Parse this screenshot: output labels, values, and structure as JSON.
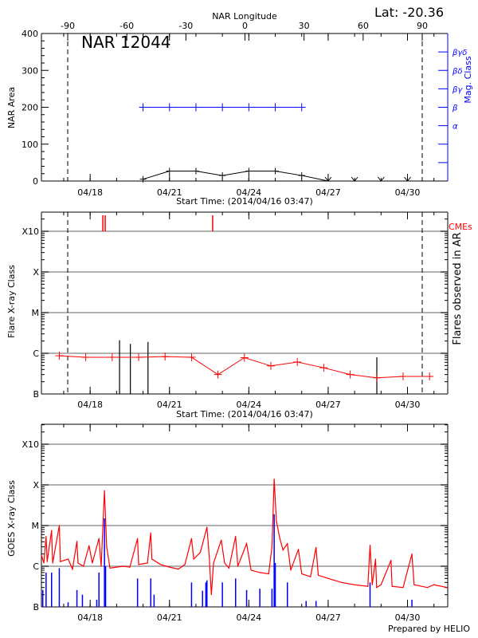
{
  "footer": {
    "prepared_by": "Prepared by HELIO"
  },
  "colors": {
    "axis": "#000000",
    "grid": "#999999",
    "flare_red": "#ff0000",
    "mag_blue": "#0000ff",
    "goes_long": "#ff0000",
    "goes_short": "#0000ff"
  },
  "chart_data": [
    {
      "type": "line",
      "title": "NAR 12044",
      "annotation": "Lat: -20.36",
      "xlabel": "Start Time: (2014/04/16 03:47)",
      "xlim": [
        "2014-04-16T03:47",
        "2014-05-01T12:30"
      ],
      "xticks": [
        {
          "date": "2014-04-18T00:00",
          "label": "04/18"
        },
        {
          "date": "2014-04-21T00:00",
          "label": "04/21"
        },
        {
          "date": "2014-04-24T00:00",
          "label": "04/24"
        },
        {
          "date": "2014-04-27T00:00",
          "label": "04/27"
        },
        {
          "date": "2014-04-30T00:00",
          "label": "04/30"
        }
      ],
      "x2label": "NAR Longitude",
      "x2ticks": [
        -90,
        -60,
        -30,
        0,
        30,
        60,
        90
      ],
      "limb_longitudes": [
        -90,
        90
      ],
      "ylabel": "NAR Area",
      "ylim": [
        0,
        400
      ],
      "yticks": [
        0,
        100,
        200,
        300,
        400
      ],
      "y2label": "Mag. Class",
      "y2ticks": [
        {
          "area": 50,
          "label": ""
        },
        {
          "area": 100,
          "label": ""
        },
        {
          "area": 150,
          "label": "α"
        },
        {
          "area": 200,
          "label": "β"
        },
        {
          "area": 250,
          "label": "βγ"
        },
        {
          "area": 300,
          "label": "βδ"
        },
        {
          "area": 350,
          "label": "βγδ"
        }
      ],
      "area_series": {
        "dates": [
          "2014-04-20T00:00",
          "2014-04-21T00:00",
          "2014-04-22T00:00",
          "2014-04-23T00:00",
          "2014-04-24T00:00",
          "2014-04-25T00:00",
          "2014-04-26T00:00",
          "2014-04-27T00:00",
          "2014-04-28T00:00",
          "2014-04-29T00:00",
          "2014-04-30T00:00"
        ],
        "values": [
          5,
          27,
          27,
          15,
          27,
          27,
          15,
          0,
          0,
          0,
          0
        ]
      },
      "mag_class_series": {
        "dates": [
          "2014-04-20T00:00",
          "2014-04-21T00:00",
          "2014-04-22T00:00",
          "2014-04-23T00:00",
          "2014-04-24T00:00",
          "2014-04-25T00:00",
          "2014-04-26T00:00"
        ],
        "values": [
          "β",
          "β",
          "β",
          "β",
          "β",
          "β",
          "β"
        ]
      }
    },
    {
      "type": "line",
      "xlabel": "Start Time: (2014/04/16 03:47)",
      "ylabel": "Flare X-ray Class",
      "y2label": "Flares observed in AR",
      "cme_label": "CMEs",
      "y_scale": "log",
      "yticks": [
        "B",
        "C",
        "M",
        "X",
        "X10"
      ],
      "grid": true,
      "limb_longitudes": [
        -90,
        90
      ],
      "cme_times": [
        "2014-04-18T11:30",
        "2014-04-18T13:40",
        "2014-04-22T15:10"
      ],
      "flares": [
        {
          "date": "2014-04-19T02:40",
          "class": "C2.1"
        },
        {
          "date": "2014-04-19T12:30",
          "class": "C1.7"
        },
        {
          "date": "2014-04-20T04:30",
          "class": "C1.9"
        },
        {
          "date": "2014-04-28T20:10",
          "class": "B8.0"
        }
      ],
      "series": {
        "dates": [
          "2014-04-16T20:00",
          "2014-04-17T20:00",
          "2014-04-18T20:00",
          "2014-04-19T20:00",
          "2014-04-20T20:00",
          "2014-04-21T20:00",
          "2014-04-22T20:00",
          "2014-04-23T20:00",
          "2014-04-24T20:00",
          "2014-04-25T20:00",
          "2014-04-26T20:00",
          "2014-04-27T20:00",
          "2014-04-28T20:00",
          "2014-04-29T20:00",
          "2014-04-30T20:00"
        ],
        "values": [
          "B8.7",
          "B8.0",
          "B8.0",
          "B8.0",
          "B8.3",
          "B8.0",
          "B3.0",
          "B7.8",
          "B4.9",
          "B6.1",
          "B4.4",
          "B3.0",
          "B2.5",
          "B2.7",
          "B2.7"
        ]
      }
    },
    {
      "type": "line",
      "ylabel": "GOES X-ray Class",
      "y_scale": "log",
      "yticks": [
        "B",
        "C",
        "M",
        "X",
        "X10"
      ],
      "grid": true,
      "long_channel": [
        [
          "2014-04-16T04:00",
          "C1.8"
        ],
        [
          "2014-04-16T06:00",
          "C1.2"
        ],
        [
          "2014-04-16T08:00",
          "C5.4"
        ],
        [
          "2014-04-16T09:00",
          "C1.3"
        ],
        [
          "2014-04-16T13:00",
          "C7.6"
        ],
        [
          "2014-04-16T14:00",
          "C1.2"
        ],
        [
          "2014-04-16T20:00",
          "M1.0"
        ],
        [
          "2014-04-16T21:00",
          "C1.3"
        ],
        [
          "2014-04-17T04:00",
          "C1.5"
        ],
        [
          "2014-04-17T08:00",
          "B8.5"
        ],
        [
          "2014-04-17T12:00",
          "C4.1"
        ],
        [
          "2014-04-17T13:00",
          "C1.2"
        ],
        [
          "2014-04-17T18:00",
          "C1.0"
        ],
        [
          "2014-04-17T23:00",
          "C3.2"
        ],
        [
          "2014-04-18T02:00",
          "C1.2"
        ],
        [
          "2014-04-18T08:00",
          "C4.8"
        ],
        [
          "2014-04-18T10:00",
          "C1.0"
        ],
        [
          "2014-04-18T13:00",
          "M7.2"
        ],
        [
          "2014-04-18T15:00",
          "C3.0"
        ],
        [
          "2014-04-18T18:00",
          "B9.0"
        ],
        [
          "2014-04-19T06:00",
          "C1.0"
        ],
        [
          "2014-04-19T12:00",
          "B9.5"
        ],
        [
          "2014-04-19T19:00",
          "C4.8"
        ],
        [
          "2014-04-19T20:00",
          "C1.1"
        ],
        [
          "2014-04-20T04:00",
          "C1.2"
        ],
        [
          "2014-04-20T07:00",
          "C6.6"
        ],
        [
          "2014-04-20T08:00",
          "C1.5"
        ],
        [
          "2014-04-20T16:00",
          "C1.1"
        ],
        [
          "2014-04-21T00:00",
          "B9.5"
        ],
        [
          "2014-04-21T08:00",
          "B8.5"
        ],
        [
          "2014-04-21T14:00",
          "C1.1"
        ],
        [
          "2014-04-21T20:00",
          "C4.8"
        ],
        [
          "2014-04-21T22:00",
          "C1.5"
        ],
        [
          "2014-04-22T04:00",
          "C2.2"
        ],
        [
          "2014-04-22T10:00",
          "C9.1"
        ],
        [
          "2014-04-22T12:00",
          "C1.8"
        ],
        [
          "2014-04-22T14:00",
          "B2.0"
        ],
        [
          "2014-04-22T16:00",
          "C1.2"
        ],
        [
          "2014-04-22T23:00",
          "C4.4"
        ],
        [
          "2014-04-23T02:00",
          "C1.2"
        ],
        [
          "2014-04-23T06:00",
          "B9.0"
        ],
        [
          "2014-04-23T12:00",
          "C5.4"
        ],
        [
          "2014-04-23T14:00",
          "C1.0"
        ],
        [
          "2014-04-23T22:00",
          "C3.6"
        ],
        [
          "2014-04-24T02:00",
          "B8.0"
        ],
        [
          "2014-04-24T10:00",
          "B7.0"
        ],
        [
          "2014-04-24T18:00",
          "B6.5"
        ],
        [
          "2014-04-24T21:00",
          "C3.0"
        ],
        [
          "2014-04-24T23:00",
          "X1.4"
        ],
        [
          "2014-04-25T01:00",
          "M1.3"
        ],
        [
          "2014-04-25T04:00",
          "C5.0"
        ],
        [
          "2014-04-25T07:00",
          "C2.5"
        ],
        [
          "2014-04-25T11:00",
          "C3.6"
        ],
        [
          "2014-04-25T14:00",
          "B8.0"
        ],
        [
          "2014-04-25T21:00",
          "C2.6"
        ],
        [
          "2014-04-26T00:00",
          "B6.5"
        ],
        [
          "2014-04-26T08:00",
          "B5.5"
        ],
        [
          "2014-04-26T13:00",
          "C2.9"
        ],
        [
          "2014-04-26T15:00",
          "B6.0"
        ],
        [
          "2014-04-27T00:00",
          "B5.0"
        ],
        [
          "2014-04-27T12:00",
          "B4.0"
        ],
        [
          "2014-04-28T00:00",
          "B3.5"
        ],
        [
          "2014-04-28T12:00",
          "B3.2"
        ],
        [
          "2014-04-28T14:00",
          "C3.3"
        ],
        [
          "2014-04-28T16:00",
          "B3.5"
        ],
        [
          "2014-04-28T19:00",
          "C1.5"
        ],
        [
          "2014-04-28T20:00",
          "B3.0"
        ],
        [
          "2014-04-29T00:00",
          "B3.5"
        ],
        [
          "2014-04-29T09:00",
          "C1.4"
        ],
        [
          "2014-04-29T10:00",
          "B3.2"
        ],
        [
          "2014-04-29T20:00",
          "B3.0"
        ],
        [
          "2014-04-30T04:00",
          "C2.0"
        ],
        [
          "2014-04-30T06:00",
          "B3.5"
        ],
        [
          "2014-04-30T18:00",
          "B3.0"
        ],
        [
          "2014-05-01T00:00",
          "B3.5"
        ],
        [
          "2014-05-01T12:00",
          "B3.0"
        ]
      ],
      "short_channel": [
        [
          "2014-04-16T05:00",
          "B2.6"
        ],
        [
          "2014-04-16T08:00",
          "B7.0"
        ],
        [
          "2014-04-16T13:00",
          "B7.0"
        ],
        [
          "2014-04-16T20:00",
          "B9.0"
        ],
        [
          "2014-04-17T04:00",
          "B1.3"
        ],
        [
          "2014-04-17T12:00",
          "B2.6"
        ],
        [
          "2014-04-17T17:00",
          "B2.0"
        ],
        [
          "2014-04-18T06:00",
          "B1.5"
        ],
        [
          "2014-04-18T08:00",
          "B7.0"
        ],
        [
          "2014-04-18T13:00",
          "M1.5"
        ],
        [
          "2014-04-18T14:00",
          "C1.0"
        ],
        [
          "2014-04-19T19:00",
          "B5.0"
        ],
        [
          "2014-04-20T07:00",
          "B5.0"
        ],
        [
          "2014-04-20T10:00",
          "B2.0"
        ],
        [
          "2014-04-21T20:00",
          "B4.0"
        ],
        [
          "2014-04-22T06:00",
          "B2.5"
        ],
        [
          "2014-04-22T09:00",
          "B4.0"
        ],
        [
          "2014-04-22T10:00",
          "B4.5"
        ],
        [
          "2014-04-23T00:00",
          "B4.0"
        ],
        [
          "2014-04-23T12:00",
          "B5.0"
        ],
        [
          "2014-04-23T22:00",
          "B2.6"
        ],
        [
          "2014-04-24T10:00",
          "B2.8"
        ],
        [
          "2014-04-24T21:00",
          "B2.8"
        ],
        [
          "2014-04-24T23:00",
          "M1.9"
        ],
        [
          "2014-04-25T00:00",
          "C1.2"
        ],
        [
          "2014-04-25T11:00",
          "B4.0"
        ],
        [
          "2014-04-26T04:00",
          "B1.4"
        ],
        [
          "2014-04-26T13:00",
          "B1.4"
        ],
        [
          "2014-04-28T14:00",
          "B4.0"
        ],
        [
          "2014-04-30T04:00",
          "B1.5"
        ]
      ]
    }
  ]
}
